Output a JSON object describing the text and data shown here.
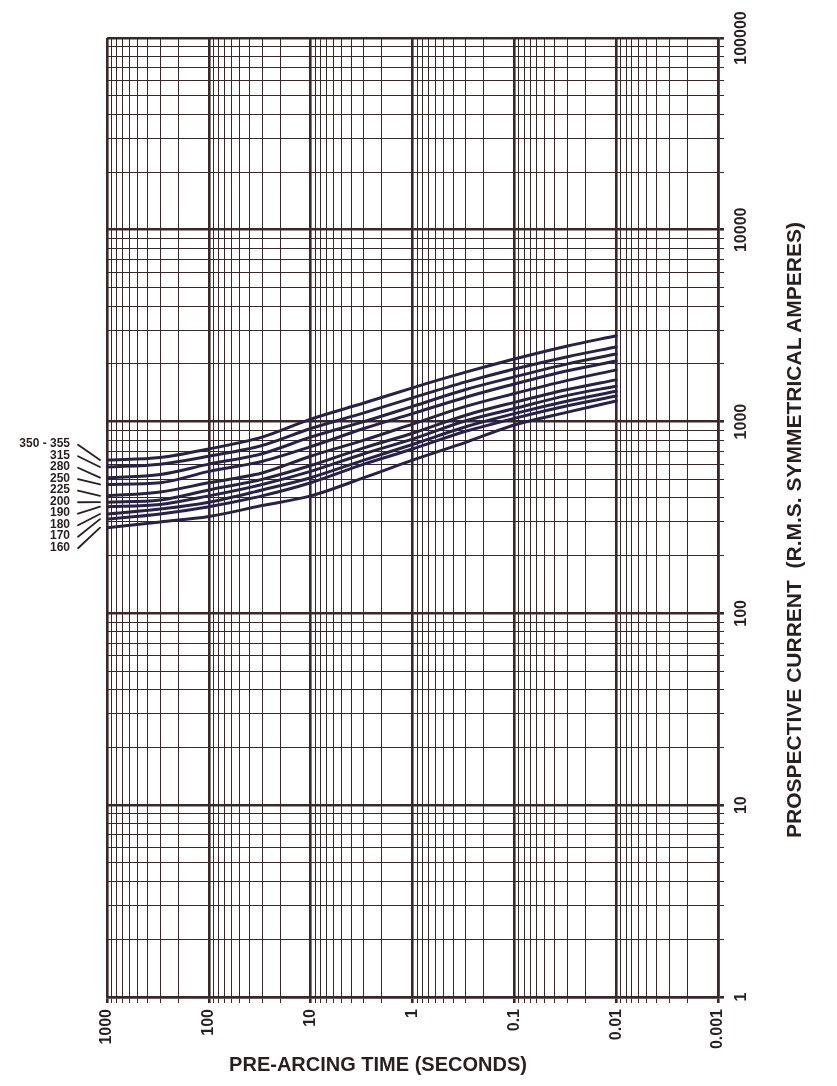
{
  "chart_data": {
    "type": "line",
    "xlabel": "PRE-ARCING TIME (SECONDS)",
    "ylabel": "PROSPECTIVE CURRENT  (R.M.S. SYMMETRICAL AMPERES)",
    "x": [
      1000,
      300,
      100,
      30,
      10,
      3,
      1,
      0.3,
      0.1,
      0.03,
      0.01
    ],
    "series": [
      {
        "name": "350 - 355",
        "color": "#27224c",
        "values": [
          630,
          650,
          720,
          830,
          1030,
          1250,
          1500,
          1810,
          2120,
          2480,
          2800
        ]
      },
      {
        "name": "315",
        "color": "#27224c",
        "values": [
          580,
          600,
          660,
          750,
          920,
          1110,
          1330,
          1610,
          1880,
          2180,
          2450
        ]
      },
      {
        "name": "280",
        "color": "#27224c",
        "values": [
          510,
          530,
          600,
          680,
          830,
          1000,
          1200,
          1470,
          1710,
          2000,
          2250
        ]
      },
      {
        "name": "250",
        "color": "#27224c",
        "values": [
          470,
          480,
          550,
          620,
          740,
          920,
          1100,
          1340,
          1570,
          1840,
          2070
        ]
      },
      {
        "name": "225",
        "color": "#27224c",
        "values": [
          410,
          430,
          480,
          540,
          660,
          800,
          970,
          1200,
          1400,
          1640,
          1860
        ]
      },
      {
        "name": "200",
        "color": "#27224c",
        "values": [
          380,
          390,
          440,
          500,
          590,
          730,
          870,
          1080,
          1260,
          1470,
          1650
        ]
      },
      {
        "name": "190",
        "color": "#27224c",
        "values": [
          360,
          370,
          410,
          470,
          550,
          680,
          810,
          1010,
          1170,
          1370,
          1530
        ]
      },
      {
        "name": "180",
        "color": "#27224c",
        "values": [
          330,
          350,
          380,
          440,
          510,
          630,
          760,
          940,
          1100,
          1280,
          1440
        ]
      },
      {
        "name": "170",
        "color": "#27224c",
        "values": [
          310,
          330,
          360,
          410,
          480,
          600,
          720,
          890,
          1040,
          1210,
          1360
        ]
      },
      {
        "name": "160",
        "color": "#27224c",
        "values": [
          280,
          300,
          320,
          365,
          410,
          510,
          630,
          780,
          960,
          1120,
          1280
        ]
      }
    ],
    "xlim": [
      1000,
      0.001
    ],
    "xticks": [
      0.001,
      {
        "value": 0.002,
        "label": null
      },
      {
        "value": 0.003,
        "label": null
      },
      {
        "value": 0.004,
        "label": null
      },
      {
        "value": 0.005,
        "label": null
      },
      {
        "value": 0.006,
        "label": null
      },
      {
        "value": 0.007,
        "label": null
      },
      {
        "value": 0.008,
        "label": null
      },
      {
        "value": 0.009,
        "label": null
      },
      0.01,
      {
        "value": 0.02,
        "label": null
      },
      {
        "value": 0.03,
        "label": null
      },
      {
        "value": 0.04,
        "label": null
      },
      {
        "value": 0.05,
        "label": null
      },
      {
        "value": 0.06,
        "label": null
      },
      {
        "value": 0.07,
        "label": null
      },
      {
        "value": 0.08,
        "label": null
      },
      {
        "value": 0.09,
        "label": null
      },
      0.1,
      {
        "value": 0.2,
        "label": null
      },
      {
        "value": 0.3,
        "label": null
      },
      {
        "value": 0.4,
        "label": null
      },
      {
        "value": 0.5,
        "label": null
      },
      {
        "value": 0.6,
        "label": null
      },
      {
        "value": 0.7,
        "label": null
      },
      {
        "value": 0.8,
        "label": null
      },
      {
        "value": 0.9,
        "label": null
      },
      1,
      {
        "value": 2,
        "label": null
      },
      {
        "value": 3,
        "label": null
      },
      {
        "value": 4,
        "label": null
      },
      {
        "value": 5,
        "label": null
      },
      {
        "value": 6,
        "label": null
      },
      {
        "value": 7,
        "label": null
      },
      {
        "value": 8,
        "label": null
      },
      {
        "value": 9,
        "label": null
      },
      10,
      {
        "value": 20,
        "label": null
      },
      {
        "value": 30,
        "label": null
      },
      {
        "value": 40,
        "label": null
      },
      {
        "value": 50,
        "label": null
      },
      {
        "value": 60,
        "label": null
      },
      {
        "value": 70,
        "label": null
      },
      {
        "value": 80,
        "label": null
      },
      {
        "value": 90,
        "label": null
      },
      100,
      {
        "value": 200,
        "label": null
      },
      {
        "value": 300,
        "label": null
      },
      {
        "value": 400,
        "label": null
      },
      {
        "value": 500,
        "label": null
      },
      {
        "value": 600,
        "label": null
      },
      {
        "value": 700,
        "label": null
      },
      {
        "value": 800,
        "label": null
      },
      {
        "value": 900,
        "label": null
      },
      1000
    ],
    "ylim": [
      1,
      100000
    ],
    "yticks": [
      1,
      {
        "value": 2,
        "label": null
      },
      {
        "value": 3,
        "label": null
      },
      {
        "value": 4,
        "label": null
      },
      {
        "value": 5,
        "label": null
      },
      {
        "value": 6,
        "label": null
      },
      {
        "value": 7,
        "label": null
      },
      {
        "value": 8,
        "label": null
      },
      {
        "value": 9,
        "label": null
      },
      10,
      {
        "value": 20,
        "label": null
      },
      {
        "value": 30,
        "label": null
      },
      {
        "value": 40,
        "label": null
      },
      {
        "value": 50,
        "label": null
      },
      {
        "value": 60,
        "label": null
      },
      {
        "value": 70,
        "label": null
      },
      {
        "value": 80,
        "label": null
      },
      {
        "value": 90,
        "label": null
      },
      100,
      {
        "value": 200,
        "label": null
      },
      {
        "value": 300,
        "label": null
      },
      {
        "value": 400,
        "label": null
      },
      {
        "value": 500,
        "label": null
      },
      {
        "value": 600,
        "label": null
      },
      {
        "value": 700,
        "label": null
      },
      {
        "value": 800,
        "label": null
      },
      {
        "value": 900,
        "label": null
      },
      1000,
      {
        "value": 2000,
        "label": null
      },
      {
        "value": 3000,
        "label": null
      },
      {
        "value": 4000,
        "label": null
      },
      {
        "value": 5000,
        "label": null
      },
      {
        "value": 6000,
        "label": null
      },
      {
        "value": 7000,
        "label": null
      },
      {
        "value": 8000,
        "label": null
      },
      {
        "value": 9000,
        "label": null
      },
      10000,
      {
        "value": 20000,
        "label": null
      },
      {
        "value": 30000,
        "label": null
      },
      {
        "value": 40000,
        "label": null
      },
      {
        "value": 50000,
        "label": null
      },
      {
        "value": 60000,
        "label": null
      },
      {
        "value": 70000,
        "label": null
      },
      {
        "value": 80000,
        "label": null
      },
      {
        "value": 90000,
        "label": null
      },
      100000
    ],
    "log": "xy",
    "grid": true
  }
}
